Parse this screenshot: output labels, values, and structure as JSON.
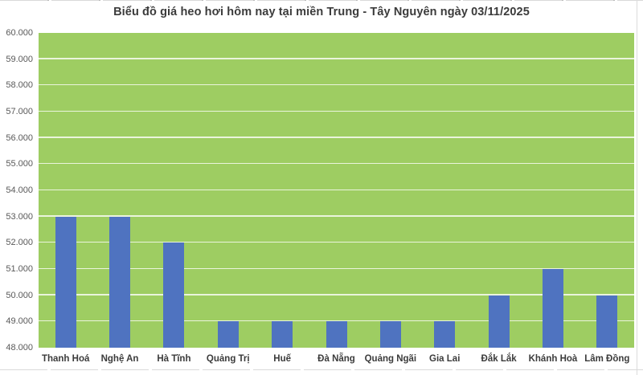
{
  "chart_data": {
    "type": "bar",
    "title": "Biểu đồ giá heo hơi hôm nay tại miền Trung - Tây Nguyên ngày 03/11/2025",
    "categories": [
      "Thanh Hoá",
      "Nghệ An",
      "Hà Tĩnh",
      "Quảng Trị",
      "Huế",
      "Đà Nẵng",
      "Quảng Ngãi",
      "Gia Lai",
      "Đắk Lắk",
      "Khánh Hoà",
      "Lâm Đồng"
    ],
    "values": [
      53000,
      53000,
      52000,
      49000,
      49000,
      49000,
      49000,
      49000,
      50000,
      51000,
      50000
    ],
    "xlabel": "",
    "ylabel": "",
    "ylim": [
      48000,
      60000
    ],
    "ytick_step": 1000,
    "ytick_labels": [
      "48.000",
      "49.000",
      "50.000",
      "51.000",
      "52.000",
      "53.000",
      "54.000",
      "55.000",
      "56.000",
      "57.000",
      "58.000",
      "59.000",
      "60.000"
    ],
    "grid": "horizontal",
    "legend": "none",
    "colors": {
      "bar": "#4F73C0",
      "plot_background": "#9ECD62",
      "gridline": "rgba(255,255,255,0.78)",
      "title_text": "#3B3B3B",
      "ytick_text": "#595959",
      "xtick_text": "#3B3B3B",
      "page_background": "#FFFFFF",
      "frame_line": "#D9D9D9"
    }
  }
}
